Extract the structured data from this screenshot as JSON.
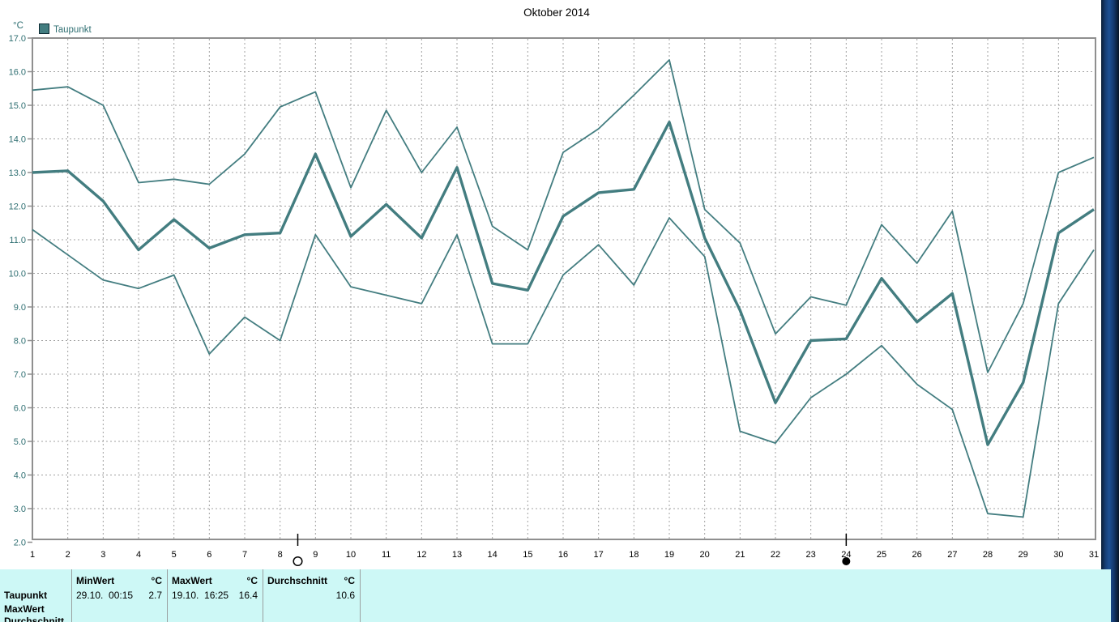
{
  "window": {
    "title": "Oktober 2014"
  },
  "chart_data": {
    "type": "line",
    "title": "Oktober 2014",
    "y_unit": "°C",
    "xlabel": "",
    "ylabel": "°C",
    "ylim": [
      2.0,
      17.0
    ],
    "y_ticks": [
      17,
      16,
      15,
      14,
      13,
      12,
      11,
      10,
      9,
      8,
      7,
      6,
      5,
      4,
      3,
      2
    ],
    "x": [
      1,
      2,
      3,
      4,
      5,
      6,
      7,
      8,
      9,
      10,
      11,
      12,
      13,
      14,
      15,
      16,
      17,
      18,
      19,
      20,
      21,
      22,
      23,
      24,
      25,
      26,
      27,
      28,
      29,
      30,
      31
    ],
    "grid": true,
    "legend_position": "top-left",
    "legend": [
      {
        "label": "Taupunkt",
        "color": "#437d80"
      }
    ],
    "series": [
      {
        "name": "max",
        "width": 1.8,
        "values": [
          15.45,
          15.55,
          15.0,
          12.7,
          12.8,
          12.65,
          13.55,
          14.95,
          15.4,
          12.55,
          14.85,
          13.0,
          14.35,
          11.4,
          10.7,
          13.6,
          14.3,
          15.3,
          16.35,
          11.9,
          10.9,
          8.2,
          9.3,
          9.05,
          11.45,
          10.3,
          11.85,
          7.05,
          9.1,
          13.0,
          13.45
        ]
      },
      {
        "name": "durchschnitt",
        "width": 3.4,
        "values": [
          13.0,
          13.05,
          12.15,
          10.7,
          11.6,
          10.75,
          11.15,
          11.2,
          13.55,
          11.1,
          12.05,
          11.05,
          13.15,
          9.7,
          9.5,
          11.7,
          12.4,
          12.5,
          14.5,
          11.05,
          8.9,
          6.15,
          8.0,
          8.05,
          9.85,
          8.55,
          9.4,
          4.9,
          6.75,
          11.2,
          11.9
        ]
      },
      {
        "name": "min",
        "width": 1.8,
        "values": [
          11.3,
          10.55,
          9.8,
          9.55,
          9.95,
          7.6,
          8.7,
          8.0,
          11.15,
          9.6,
          9.35,
          9.1,
          11.15,
          7.9,
          7.9,
          9.95,
          10.85,
          9.65,
          11.65,
          10.5,
          5.3,
          4.95,
          6.3,
          7.0,
          7.85,
          6.7,
          5.95,
          2.85,
          2.75,
          9.1,
          10.7
        ]
      }
    ],
    "moon_markers": [
      {
        "day": 8.5,
        "phase": "full-moon-open-circle"
      },
      {
        "day": 24,
        "phase": "new-moon-filled-circle"
      }
    ]
  },
  "stats_table": {
    "row_labels": [
      "Taupunkt",
      "MaxWert",
      "Durchschnitt"
    ],
    "columns": {
      "min": {
        "header": "MinWert",
        "unit": "°C",
        "time": "29.10.  00:15",
        "value": "2.7"
      },
      "max": {
        "header": "MaxWert",
        "unit": "°C",
        "time": "19.10.  16:25",
        "value": "16.4"
      },
      "avg": {
        "header": "Durchschnitt",
        "unit": "°C",
        "value": "10.6"
      }
    }
  },
  "colors": {
    "line": "#437d80",
    "axis": "#8f8f8f",
    "grid": "#a0a0a0",
    "y_tick_text": "#2f6f72",
    "x_tick_text": "#000000",
    "title_text": "#000000",
    "panel_bg": "#cdf8f6",
    "separator": "#9aa0a0",
    "marker_black": "#000000"
  }
}
